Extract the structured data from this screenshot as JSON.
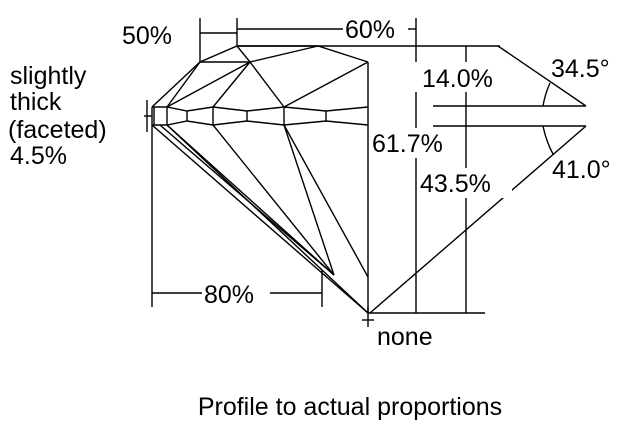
{
  "labels": {
    "crown_percent": "50%",
    "table_percent": "60%",
    "girdle_line1": "slightly",
    "girdle_line2": "thick",
    "girdle_line3": "(faceted)",
    "girdle_percent": "4.5%",
    "crown_height": "14.0%",
    "crown_angle": "34.5°",
    "total_depth": "61.7%",
    "pavilion_depth": "43.5%",
    "pavilion_angle": "41.0°",
    "lower_half": "80%",
    "culet": "none"
  },
  "caption": "Profile to actual proportions"
}
